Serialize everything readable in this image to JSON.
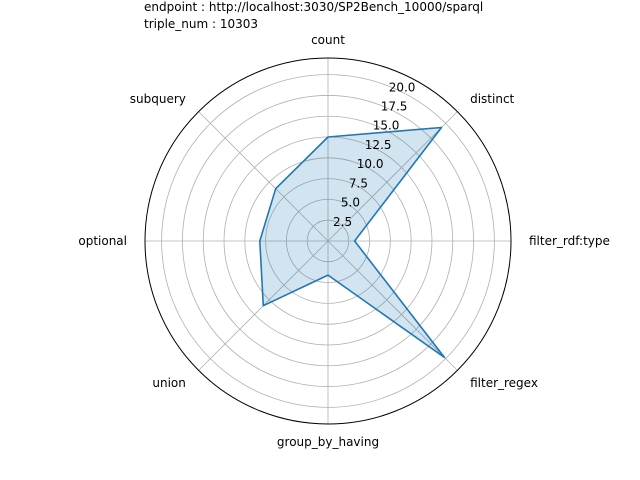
{
  "chart_data": {
    "type": "radar",
    "title_lines": [
      "endpoint : http://localhost:3030/SP2Bench_10000/sparql",
      "triple_num : 10303"
    ],
    "categories": [
      "count",
      "distinct",
      "filter_rdf:type",
      "filter_regex",
      "group_by_having",
      "union",
      "optional",
      "subquery"
    ],
    "series": [
      {
        "values": [
          12.5,
          19.3,
          3.2,
          19.8,
          4.1,
          11.0,
          8.2,
          8.9
        ]
      }
    ],
    "r_ticks": [
      "2.5",
      "5.0",
      "7.5",
      "10.0",
      "12.5",
      "15.0",
      "17.5",
      "20.0"
    ],
    "rlim": [
      0,
      22
    ],
    "grid": true,
    "fill_alpha": 0.2,
    "colors": {
      "line": "#1f77b4",
      "grid": "#b0b0b0"
    }
  }
}
